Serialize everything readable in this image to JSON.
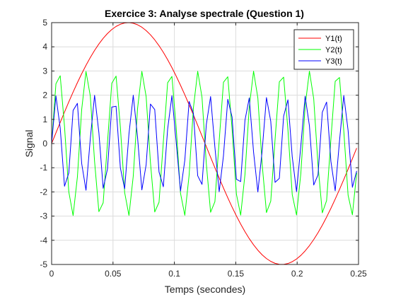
{
  "chart_data": {
    "type": "line",
    "title": "Exercice 3: Analyse spectrale (Question 1)",
    "xlabel": "Temps (secondes)",
    "ylabel": "Signal",
    "xlim": [
      0,
      0.25
    ],
    "ylim": [
      -5,
      5
    ],
    "xticks": [
      0,
      0.05,
      0.1,
      0.15,
      0.2,
      0.25
    ],
    "xtick_labels": [
      "0",
      "0.05",
      "0.1",
      "0.15",
      "0.2",
      "0.25"
    ],
    "yticks": [
      -5,
      -4,
      -3,
      -2,
      -1,
      0,
      1,
      2,
      3,
      4,
      5
    ],
    "ytick_labels": [
      "-5",
      "-4",
      "-3",
      "-2",
      "-1",
      "0",
      "1",
      "2",
      "3",
      "4",
      "5"
    ],
    "grid": true,
    "legend_position": "top-right",
    "sample_step": 0.0035,
    "series": [
      {
        "name": "Y1(t)",
        "color": "#ff0000",
        "description": "5*sin(2*pi*4*t)",
        "amplitude": 5,
        "frequency_hz": 4,
        "phase": 0
      },
      {
        "name": "Y2(t)",
        "color": "#00ff00",
        "description": "3*sin(2*pi*44*t)",
        "amplitude": 3,
        "frequency_hz": 44,
        "phase": 0
      },
      {
        "name": "Y3(t)",
        "color": "#0000ff",
        "description": "2*sin(2*pi*64*t)",
        "amplitude": 2,
        "frequency_hz": 64,
        "phase": 0
      }
    ]
  }
}
